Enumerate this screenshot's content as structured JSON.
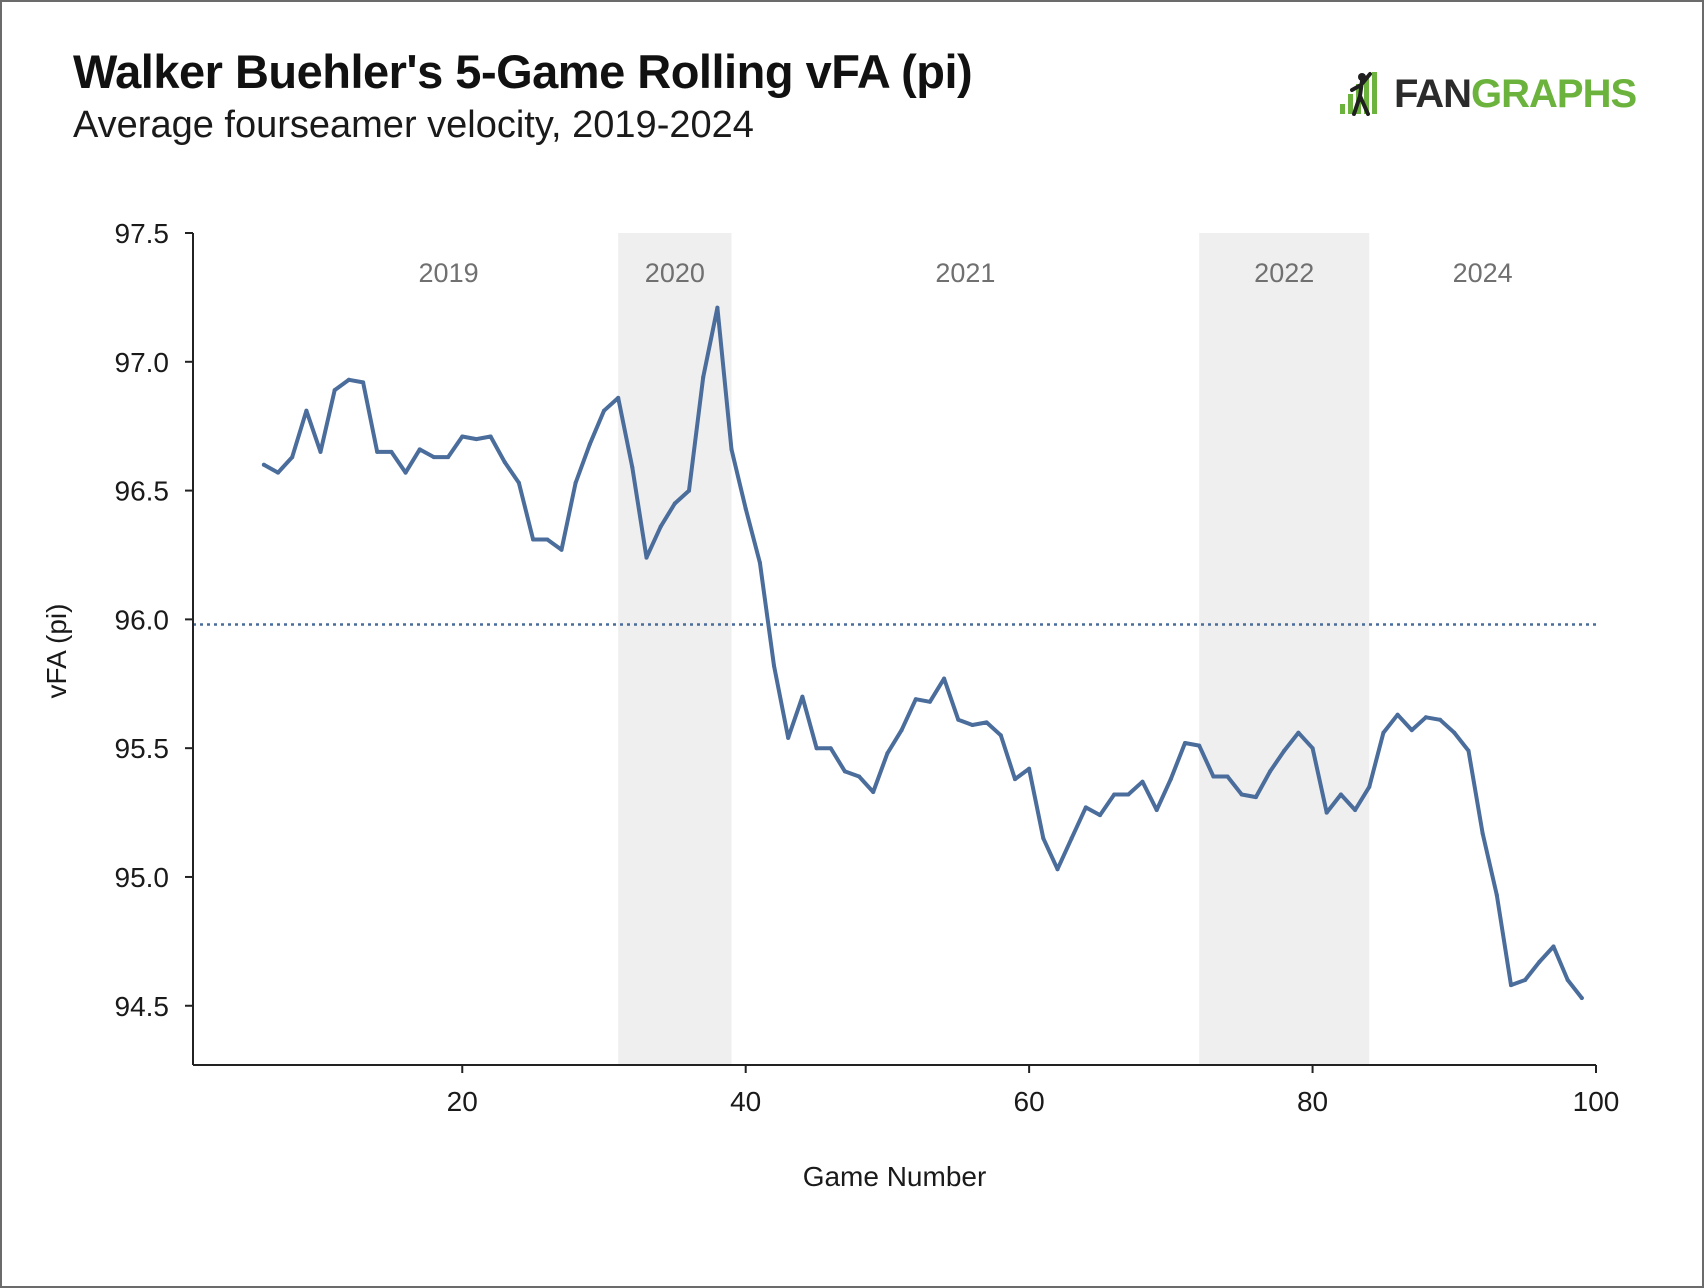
{
  "header": {
    "title": "Walker Buehler's 5-Game Rolling vFA (pi)",
    "subtitle": "Average fourseamer velocity, 2019-2024",
    "logo_text_left": "FAN",
    "logo_text_right": "GRAPHS"
  },
  "colors": {
    "line": "#4a6d9c",
    "band": "#efefef",
    "axis": "#222222",
    "logo_green": "#6cb33e",
    "logo_dark": "#2b2b2b"
  },
  "chart_data": {
    "type": "line",
    "title": "Walker Buehler's 5-Game Rolling vFA (pi)",
    "subtitle": "Average fourseamer velocity, 2019-2024",
    "xlabel": "Game Number",
    "ylabel": "vFA (pi)",
    "xlim": [
      1,
      100
    ],
    "ylim": [
      94.27,
      97.5
    ],
    "x_ticks": [
      20,
      40,
      60,
      80,
      100
    ],
    "y_ticks": [
      94.5,
      95.0,
      95.5,
      96.0,
      96.5,
      97.0,
      97.5
    ],
    "y_tick_labels": [
      "94.5",
      "95.0",
      "95.5",
      "96.0",
      "96.5",
      "97.0",
      "97.5"
    ],
    "grid": false,
    "reference_line": {
      "y": 95.98,
      "style": "dotted"
    },
    "season_bands": [
      {
        "label": "2019",
        "x_start": 1,
        "x_end": 31,
        "shaded": false
      },
      {
        "label": "2020",
        "x_start": 31,
        "x_end": 39,
        "shaded": true
      },
      {
        "label": "2021",
        "x_start": 39,
        "x_end": 72,
        "shaded": false
      },
      {
        "label": "2022",
        "x_start": 72,
        "x_end": 84,
        "shaded": true
      },
      {
        "label": "2024",
        "x_start": 84,
        "x_end": 100,
        "shaded": false
      }
    ],
    "x": [
      6,
      7,
      8,
      9,
      10,
      11,
      12,
      13,
      14,
      15,
      16,
      17,
      18,
      19,
      20,
      21,
      22,
      23,
      24,
      25,
      26,
      27,
      28,
      29,
      30,
      31,
      32,
      33,
      34,
      35,
      36,
      37,
      38,
      39,
      40,
      41,
      42,
      43,
      44,
      45,
      46,
      47,
      48,
      49,
      50,
      51,
      52,
      53,
      54,
      55,
      56,
      57,
      58,
      59,
      60,
      61,
      62,
      63,
      64,
      65,
      66,
      67,
      68,
      69,
      70,
      71,
      72,
      73,
      74,
      75,
      76,
      77,
      78,
      79,
      80,
      81,
      82,
      83,
      84,
      85,
      86,
      87,
      88,
      89,
      90,
      91,
      92,
      93,
      94,
      95,
      96,
      97,
      98,
      99
    ],
    "series": [
      {
        "values": [
          96.6,
          96.57,
          96.63,
          96.81,
          96.65,
          96.89,
          96.93,
          96.92,
          96.65,
          96.65,
          96.57,
          96.66,
          96.63,
          96.63,
          96.71,
          96.7,
          96.71,
          96.61,
          96.53,
          96.31,
          96.31,
          96.27,
          96.53,
          96.68,
          96.81,
          96.86,
          96.59,
          96.24,
          96.36,
          96.45,
          96.5,
          96.94,
          97.21,
          96.66,
          96.43,
          96.22,
          95.82,
          95.54,
          95.7,
          95.5,
          95.5,
          95.41,
          95.39,
          95.33,
          95.48,
          95.57,
          95.69,
          95.68,
          95.77,
          95.61,
          95.59,
          95.6,
          95.55,
          95.38,
          95.42,
          95.15,
          95.03,
          95.15,
          95.27,
          95.24,
          95.32,
          95.32,
          95.37,
          95.26,
          95.38,
          95.52,
          95.51,
          95.39,
          95.39,
          95.32,
          95.31,
          95.41,
          95.49,
          95.56,
          95.5,
          95.25,
          95.32,
          95.26,
          95.35,
          95.56,
          95.63,
          95.57,
          95.62,
          95.61,
          95.56,
          95.49,
          95.17,
          94.93,
          94.58,
          94.6,
          94.67,
          94.73,
          94.6,
          94.53
        ]
      }
    ]
  }
}
